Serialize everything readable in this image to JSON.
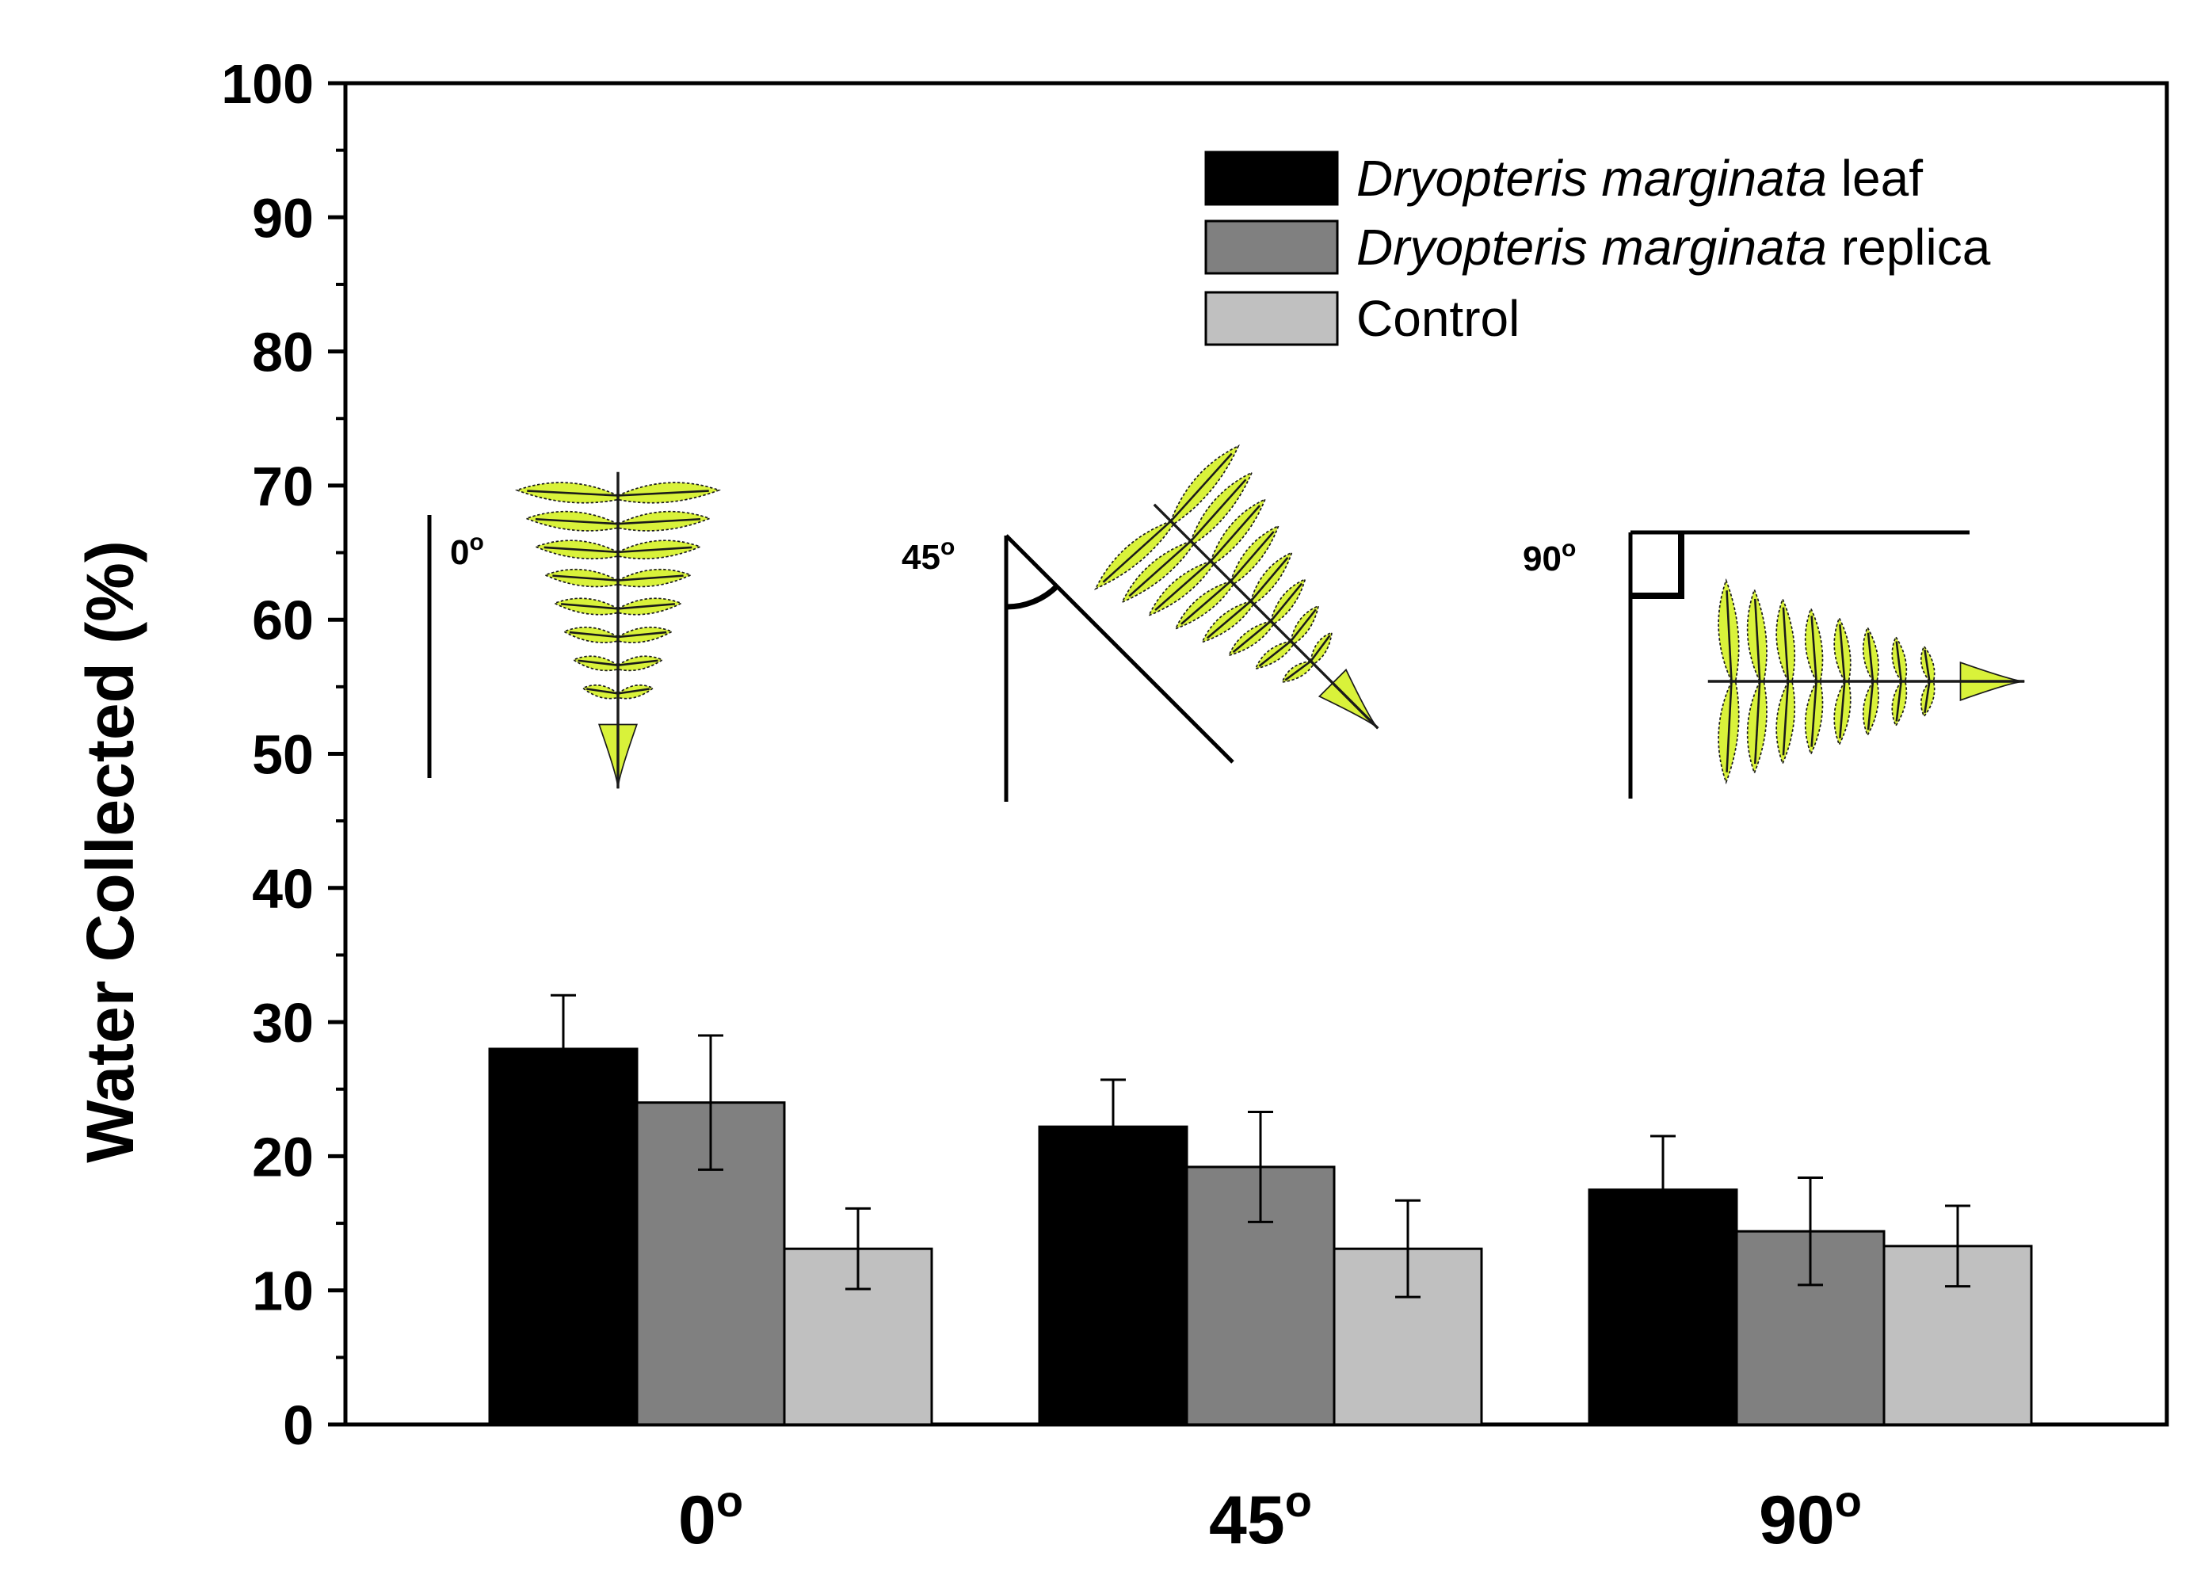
{
  "chart_data": {
    "type": "bar",
    "title": "",
    "xlabel": "",
    "ylabel": "Water Collected (%)",
    "ylim": [
      0,
      100
    ],
    "yticks": [
      "0",
      "10",
      "20",
      "30",
      "40",
      "50",
      "60",
      "70",
      "80",
      "90",
      "100"
    ],
    "categories": [
      {
        "base": "0",
        "sup": "o"
      },
      {
        "base": "45",
        "sup": "o"
      },
      {
        "base": "90",
        "sup": "o"
      }
    ],
    "series": [
      {
        "name": "Dryopteris marginata leaf",
        "italic": "Dryopteris marginata",
        "plain": " leaf",
        "color": "#000000",
        "values": [
          28,
          22.2,
          17.5
        ],
        "errors": [
          4,
          3.5,
          4
        ]
      },
      {
        "name": "Dryopteris marginata replica",
        "italic": "Dryopteris marginata",
        "plain": " replica",
        "color": "#808080",
        "values": [
          24,
          19.2,
          14.4
        ],
        "errors": [
          5,
          4.1,
          4
        ]
      },
      {
        "name": "Control",
        "italic": "",
        "plain": "Control",
        "color": "#c0c0c0",
        "values": [
          13.1,
          13.1,
          13.3
        ],
        "errors": [
          3,
          3.6,
          3
        ]
      }
    ],
    "legend_position": "top-right",
    "insets": [
      {
        "label": "0",
        "sup": "o",
        "angle": 0
      },
      {
        "label": "45",
        "sup": "o",
        "angle": 45
      },
      {
        "label": "90",
        "sup": "o",
        "angle": 90
      }
    ]
  },
  "colors": {
    "leaf_fill": "#d9f23a",
    "leaf_stroke": "#1a1a1a"
  }
}
